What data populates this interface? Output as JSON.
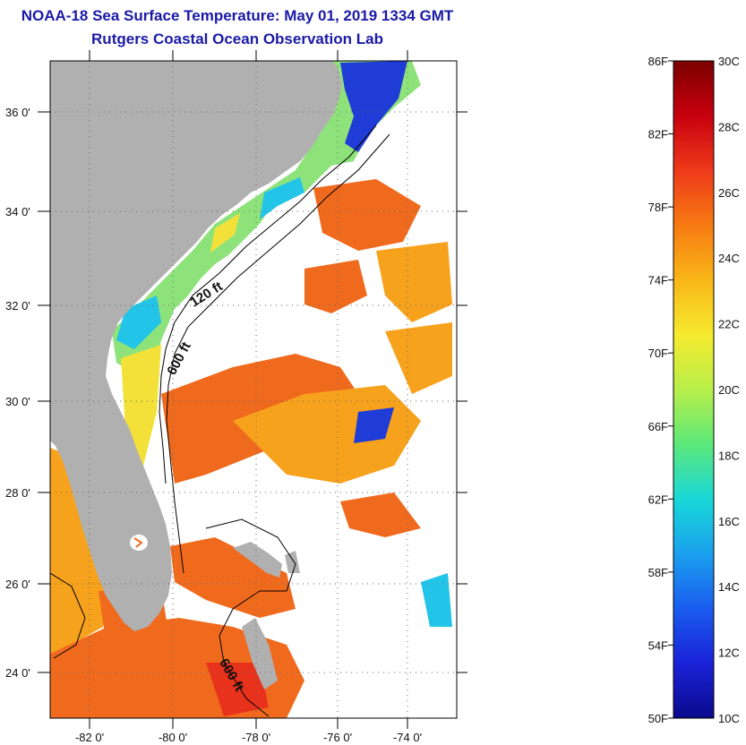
{
  "title": "NOAA-18 Sea Surface Temperature:  May 01, 2019 1334 GMT",
  "subtitle": "Rutgers Coastal Ocean Observation Lab",
  "map": {
    "lat_ticks": [
      "36 0'",
      "34 0'",
      "32 0'",
      "30 0'",
      "28 0'",
      "26 0'",
      "24 0'"
    ],
    "lon_ticks": [
      "-82 0'",
      "-80 0'",
      "-78 0'",
      "-76 0'",
      "-74 0'"
    ],
    "contour_labels": [
      "120 ft",
      "600 ft",
      "600 ft"
    ],
    "colors": {
      "land": "#b0b0b0",
      "warm": "#f06a1e",
      "orange": "#f7a21c",
      "yellow": "#f3e13a",
      "green": "#8ee27a",
      "cyan": "#22c4e8",
      "blue": "#1f3cd6",
      "red": "#e8321c"
    }
  },
  "colorbar": {
    "fahrenheit": [
      "86F",
      "82F",
      "78F",
      "74F",
      "70F",
      "66F",
      "62F",
      "58F",
      "54F",
      "50F"
    ],
    "celsius": [
      "30C",
      "28C",
      "26C",
      "24C",
      "22C",
      "20C",
      "18C",
      "16C",
      "14C",
      "12C",
      "10C"
    ],
    "gradient_stops": [
      "#7a0000",
      "#c8000e",
      "#ee3a1a",
      "#f77a12",
      "#f8b618",
      "#f6ea2e",
      "#b8ef4a",
      "#5ce87a",
      "#19d8d8",
      "#1aa0ee",
      "#1a5cee",
      "#1a22d8",
      "#0a0a8c"
    ]
  }
}
